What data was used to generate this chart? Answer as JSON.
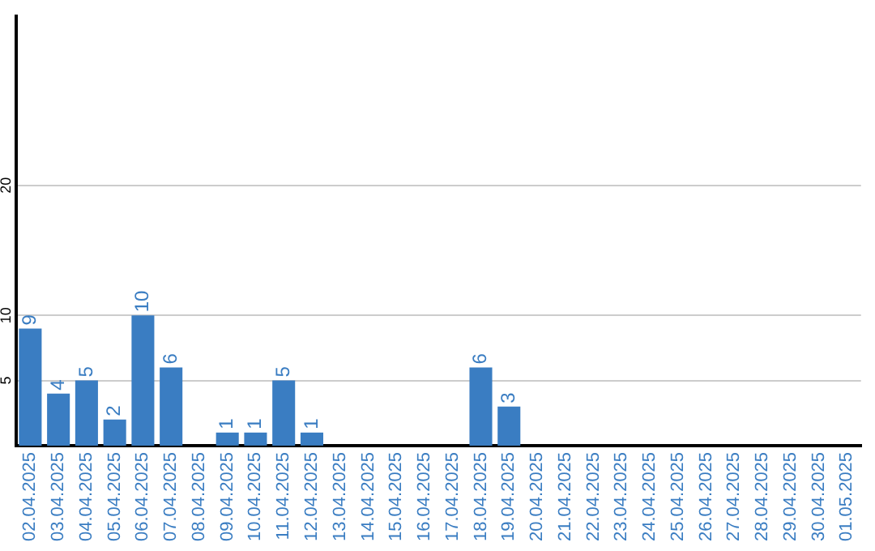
{
  "chart_data": {
    "type": "bar",
    "categories": [
      "02.04.2025",
      "03.04.2025",
      "04.04.2025",
      "05.04.2025",
      "06.04.2025",
      "07.04.2025",
      "08.04.2025",
      "09.04.2025",
      "10.04.2025",
      "11.04.2025",
      "12.04.2025",
      "13.04.2025",
      "14.04.2025",
      "15.04.2025",
      "16.04.2025",
      "17.04.2025",
      "18.04.2025",
      "19.04.2025",
      "20.04.2025",
      "21.04.2025",
      "22.04.2025",
      "23.04.2025",
      "24.04.2025",
      "25.04.2025",
      "26.04.2025",
      "27.04.2025",
      "28.04.2025",
      "29.04.2025",
      "30.04.2025",
      "01.05.2025"
    ],
    "values": [
      9,
      4,
      5,
      2,
      10,
      6,
      0,
      1,
      1,
      5,
      1,
      0,
      0,
      0,
      0,
      0,
      6,
      3,
      0,
      0,
      0,
      0,
      0,
      0,
      0,
      0,
      0,
      0,
      0,
      0
    ],
    "value_labels": [
      "9",
      "4",
      "5",
      "2",
      "10",
      "6",
      null,
      "1",
      "1",
      "5",
      "1",
      null,
      null,
      null,
      null,
      null,
      "6",
      "3",
      null,
      null,
      null,
      null,
      null,
      null,
      null,
      null,
      null,
      null,
      null,
      null
    ],
    "color": "#3a7dc2",
    "ylim": [
      0,
      33
    ],
    "yticks": [
      5,
      10,
      20
    ],
    "grid": "y",
    "legend": false
  }
}
